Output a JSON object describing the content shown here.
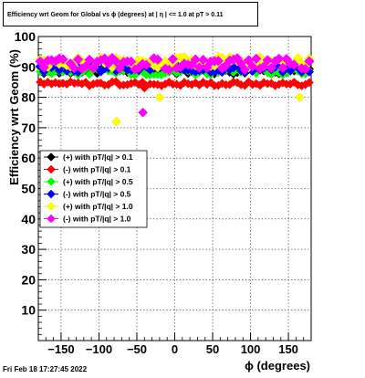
{
  "chart_data": {
    "type": "scatter",
    "title": "Efficiency wrt Geom for Global vs ϕ (degrees) at | η | <= 1.0 at pT > 0.11",
    "xlabel": "ϕ (degrees)",
    "ylabel": "Efficiency wrt Geom (%)",
    "xlim": [
      -180,
      180
    ],
    "ylim": [
      0,
      100
    ],
    "xticks": [
      -150,
      -100,
      -50,
      0,
      50,
      100,
      150
    ],
    "xtick_labels": [
      "−150",
      "−100",
      "−50",
      "0",
      "50",
      "100",
      "150"
    ],
    "yticks": [
      10,
      20,
      30,
      40,
      50,
      60,
      70,
      80,
      90,
      100
    ],
    "grid": true,
    "legend_position": "left-middle",
    "series": [
      {
        "name": "(+) with pT/|q| > 0.1",
        "color": "#000000",
        "fill": false,
        "base": 89,
        "amp": 1.3
      },
      {
        "name": "(-) with pT/|q| > 0.1",
        "color": "#ff0000",
        "fill": false,
        "base": 84.5,
        "amp": 0.7
      },
      {
        "name": "(+) with pT/|q| > 0.5",
        "color": "#00ff00",
        "fill": false,
        "base": 88.5,
        "amp": 1.2
      },
      {
        "name": "(-) with pT/|q| > 0.5",
        "color": "#0000ff",
        "fill": false,
        "base": 89.5,
        "amp": 1.3
      },
      {
        "name": "(+) with pT/|q| > 1.0",
        "color": "#ffff00",
        "fill": false,
        "base": 91.5,
        "amp": 1.8
      },
      {
        "name": "(-) with pT/|q| > 1.0",
        "color": "#ff00ff",
        "fill": false,
        "base": 91.0,
        "amp": 2.0
      }
    ],
    "outliers": [
      {
        "series": 4,
        "x": -77,
        "y": 72
      },
      {
        "series": 4,
        "x": -20,
        "y": 80
      },
      {
        "series": 4,
        "x": 165,
        "y": 80
      },
      {
        "series": 5,
        "x": -42,
        "y": 75
      },
      {
        "series": 1,
        "x": -40,
        "y": 83.2
      }
    ]
  },
  "footer": {
    "timestamp": "Fri Feb 18 17:27:45 2022"
  }
}
